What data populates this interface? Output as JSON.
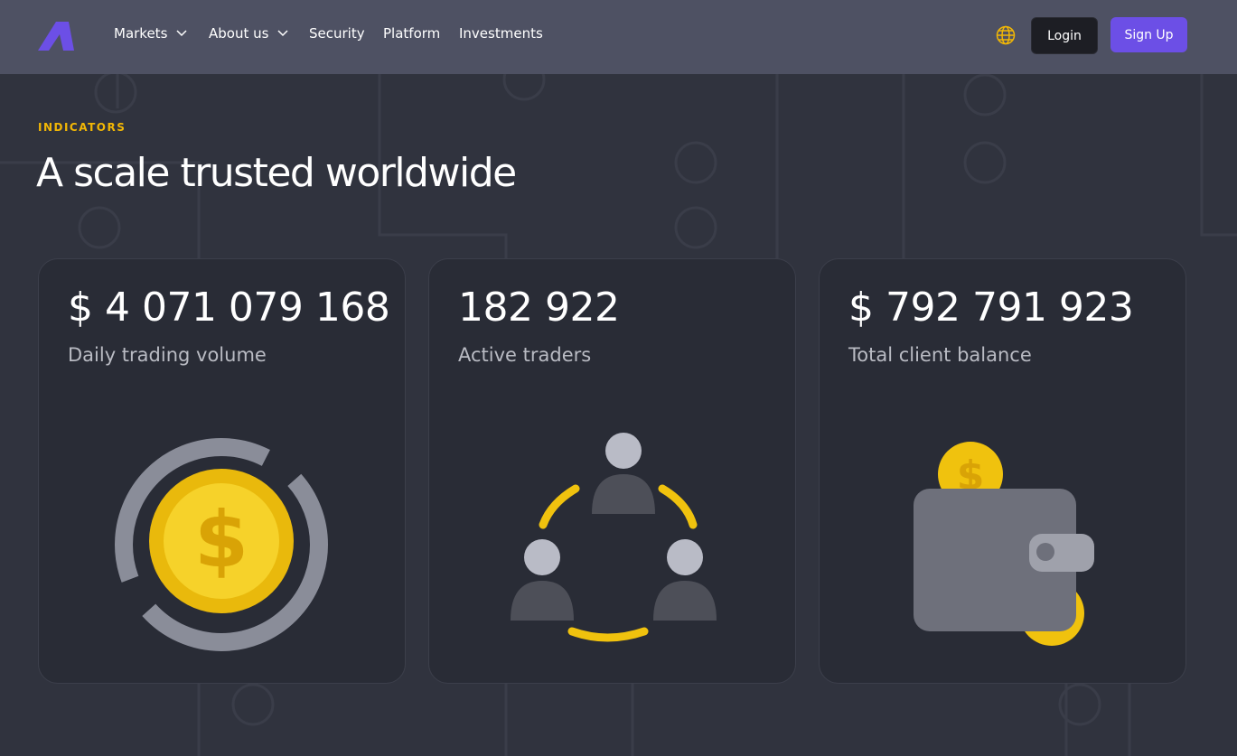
{
  "header": {
    "nav": [
      "Markets",
      "About us",
      "Security",
      "Platform",
      "Investments"
    ],
    "login": "Login",
    "signup": "Sign Up"
  },
  "section": {
    "eyebrow": "INDICATORS",
    "title": "A scale trusted worldwide"
  },
  "cards": [
    {
      "value": "$ 4 071 079 168",
      "label": "Daily trading volume"
    },
    {
      "value": "182 922",
      "label": "Active traders"
    },
    {
      "value": "$ 792 791 923",
      "label": "Total client balance"
    }
  ]
}
